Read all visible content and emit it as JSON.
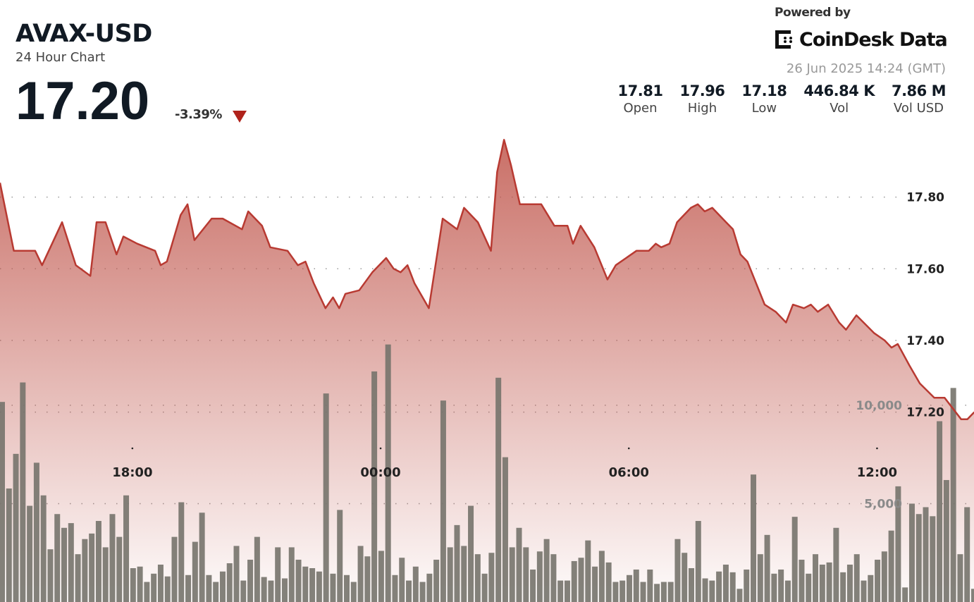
{
  "header": {
    "symbol": "AVAX-USD",
    "subtitle": "24 Hour Chart",
    "price": "17.20",
    "change": "-3.39%",
    "change_direction": "down",
    "down_color": "#b0221b"
  },
  "branding": {
    "powered_by": "Powered by",
    "brand": "CoinDesk Data",
    "timestamp": "26 Jun 2025 14:24 (GMT)"
  },
  "stats": [
    {
      "value": "17.81",
      "label": "Open"
    },
    {
      "value": "17.96",
      "label": "High"
    },
    {
      "value": "17.18",
      "label": "Low"
    },
    {
      "value": "446.84 K",
      "label": "Vol"
    },
    {
      "value": "7.86 M",
      "label": "Vol USD"
    }
  ],
  "chart_data": {
    "type": "area",
    "line_color": "#b83a32",
    "volume_color": "#76736c",
    "grid": "dotted",
    "price_ticks": [
      "17.80",
      "17.60",
      "17.40",
      "17.20"
    ],
    "price_tick_values": [
      17.8,
      17.6,
      17.4,
      17.2
    ],
    "volume_ticks": [
      "10,000",
      "5,000"
    ],
    "volume_tick_values": [
      10000,
      5000
    ],
    "time_ticks": [
      "18:00",
      "00:00",
      "06:00",
      "12:00"
    ],
    "price_ylim": [
      16.67,
      18.35
    ],
    "volume_ylim": [
      0,
      30600
    ],
    "price": [
      [
        "14:48",
        17.84
      ],
      [
        "15:08",
        17.65
      ],
      [
        "15:39",
        17.65
      ],
      [
        "15:49",
        17.61
      ],
      [
        "16:18",
        17.73
      ],
      [
        "16:38",
        17.61
      ],
      [
        "16:59",
        17.58
      ],
      [
        "17:08",
        17.73
      ],
      [
        "17:21",
        17.73
      ],
      [
        "17:37",
        17.64
      ],
      [
        "17:47",
        17.69
      ],
      [
        "18:07",
        17.67
      ],
      [
        "18:33",
        17.65
      ],
      [
        "18:41",
        17.61
      ],
      [
        "18:50",
        17.62
      ],
      [
        "19:10",
        17.75
      ],
      [
        "19:20",
        17.78
      ],
      [
        "19:30",
        17.68
      ],
      [
        "19:55",
        17.74
      ],
      [
        "20:11",
        17.74
      ],
      [
        "20:39",
        17.71
      ],
      [
        "20:48",
        17.76
      ],
      [
        "21:08",
        17.72
      ],
      [
        "21:20",
        17.66
      ],
      [
        "21:45",
        17.65
      ],
      [
        "22:00",
        17.61
      ],
      [
        "22:11",
        17.62
      ],
      [
        "22:23",
        17.56
      ],
      [
        "22:40",
        17.49
      ],
      [
        "22:51",
        17.52
      ],
      [
        "23:00",
        17.49
      ],
      [
        "23:09",
        17.53
      ],
      [
        "23:29",
        17.54
      ],
      [
        "23:48",
        17.59
      ],
      [
        "00:08",
        17.63
      ],
      [
        "00:19",
        17.6
      ],
      [
        "00:29",
        17.59
      ],
      [
        "00:39",
        17.61
      ],
      [
        "00:49",
        17.56
      ],
      [
        "01:10",
        17.49
      ],
      [
        "01:30",
        17.74
      ],
      [
        "01:51",
        17.71
      ],
      [
        "02:01",
        17.77
      ],
      [
        "02:21",
        17.73
      ],
      [
        "02:40",
        17.65
      ],
      [
        "02:49",
        17.87
      ],
      [
        "02:59",
        17.96
      ],
      [
        "03:09",
        17.89
      ],
      [
        "03:22",
        17.78
      ],
      [
        "03:43",
        17.78
      ],
      [
        "03:53",
        17.78
      ],
      [
        "04:12",
        17.72
      ],
      [
        "04:31",
        17.72
      ],
      [
        "04:39",
        17.67
      ],
      [
        "04:50",
        17.72
      ],
      [
        "05:10",
        17.66
      ],
      [
        "05:29",
        17.57
      ],
      [
        "05:41",
        17.61
      ],
      [
        "06:11",
        17.65
      ],
      [
        "06:29",
        17.65
      ],
      [
        "06:39",
        17.67
      ],
      [
        "06:47",
        17.66
      ],
      [
        "06:59",
        17.67
      ],
      [
        "07:10",
        17.73
      ],
      [
        "07:30",
        17.77
      ],
      [
        "07:40",
        17.78
      ],
      [
        "07:50",
        17.76
      ],
      [
        "08:01",
        17.77
      ],
      [
        "08:21",
        17.73
      ],
      [
        "08:31",
        17.71
      ],
      [
        "08:42",
        17.64
      ],
      [
        "08:52",
        17.62
      ],
      [
        "09:17",
        17.5
      ],
      [
        "09:33",
        17.48
      ],
      [
        "09:48",
        17.45
      ],
      [
        "09:58",
        17.5
      ],
      [
        "10:14",
        17.49
      ],
      [
        "10:24",
        17.5
      ],
      [
        "10:34",
        17.48
      ],
      [
        "10:49",
        17.5
      ],
      [
        "11:05",
        17.45
      ],
      [
        "11:15",
        17.43
      ],
      [
        "11:30",
        17.47
      ],
      [
        "11:56",
        17.42
      ],
      [
        "12:11",
        17.4
      ],
      [
        "12:21",
        17.38
      ],
      [
        "12:30",
        17.39
      ],
      [
        "12:47",
        17.33
      ],
      [
        "13:02",
        17.28
      ],
      [
        "13:23",
        17.24
      ],
      [
        "13:38",
        17.24
      ],
      [
        "14:02",
        17.18
      ],
      [
        "14:11",
        17.18
      ],
      [
        "14:21",
        17.2
      ]
    ],
    "volume": [
      10170,
      5770,
      7530,
      11160,
      4890,
      7080,
      5420,
      2680,
      4470,
      3770,
      4010,
      2430,
      3200,
      3480,
      4120,
      2780,
      4470,
      3310,
      5420,
      1720,
      1800,
      1020,
      1440,
      1900,
      1300,
      3310,
      5070,
      1370,
      3060,
      4540,
      1370,
      1020,
      1550,
      1970,
      2850,
      1090,
      2150,
      3310,
      1270,
      1090,
      2780,
      1200,
      2780,
      2150,
      1800,
      1720,
      1550,
      10600,
      1440,
      4680,
      1370,
      1020,
      2850,
      2320,
      11720,
      2600,
      13090,
      1370,
      2250,
      1090,
      1800,
      1020,
      1440,
      2150,
      10240,
      2780,
      3910,
      2850,
      4890,
      2430,
      1440,
      2500,
      11400,
      7360,
      2780,
      3770,
      2780,
      1650,
      2570,
      3200,
      2430,
      1090,
      1090,
      2080,
      2250,
      3130,
      1800,
      2600,
      2010,
      1020,
      1090,
      1370,
      1650,
      1020,
      1650,
      920,
      1020,
      1020,
      3200,
      2500,
      1720,
      4120,
      1200,
      1090,
      1550,
      1900,
      1510,
      670,
      1650,
      6480,
      2430,
      3410,
      1440,
      1650,
      1090,
      4330,
      2150,
      1440,
      2430,
      1900,
      2010,
      3770,
      1510,
      1900,
      2430,
      1090,
      1370,
      2150,
      2570,
      3630,
      5880,
      740,
      5000,
      4470,
      4820,
      4360,
      9190,
      6200,
      10880,
      2430,
      4820,
      670
    ]
  }
}
